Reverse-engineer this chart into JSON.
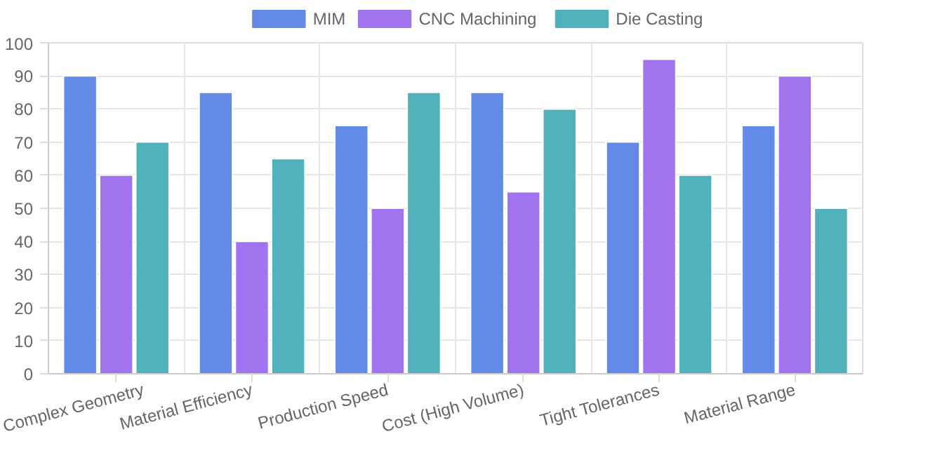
{
  "chart_data": {
    "type": "bar",
    "categories": [
      "Complex Geometry",
      "Material Efficiency",
      "Production Speed",
      "Cost (High Volume)",
      "Tight Tolerances",
      "Material Range"
    ],
    "series": [
      {
        "name": "MIM",
        "color": "#628ae6",
        "values": [
          90,
          85,
          75,
          85,
          70,
          75
        ]
      },
      {
        "name": "CNC Machining",
        "color": "#a273ef",
        "values": [
          60,
          40,
          50,
          55,
          95,
          90
        ]
      },
      {
        "name": "Die Casting",
        "color": "#50b1bc",
        "values": [
          70,
          65,
          85,
          80,
          60,
          50
        ]
      }
    ],
    "ylim": [
      0,
      100
    ],
    "yticks": [
      0,
      10,
      20,
      30,
      40,
      50,
      60,
      70,
      80,
      90,
      100
    ],
    "grid": true,
    "legend": "top"
  }
}
